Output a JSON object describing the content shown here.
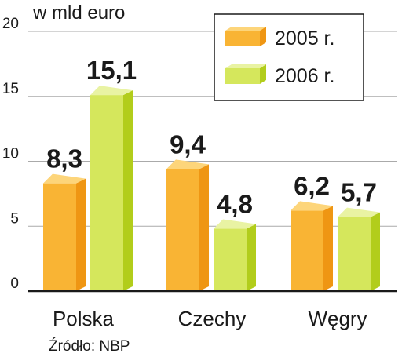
{
  "colors": {
    "2005": {
      "front": "#f9b434",
      "side": "#ef9613",
      "top": "#fdd57a"
    },
    "2006": {
      "front": "#d5e75c",
      "side": "#b2cd1b",
      "top": "#e9f3a3"
    }
  },
  "chart_data": {
    "type": "bar",
    "title": "",
    "unit_label": "w mld euro",
    "xlabel": "",
    "ylabel": "",
    "ylim": [
      0,
      20
    ],
    "yticks": [
      0,
      5,
      10,
      15,
      20
    ],
    "ytick_labels": [
      "0",
      "5",
      "10",
      "15",
      "20"
    ],
    "grid": true,
    "legend_position": "top-right",
    "categories": [
      "Polska",
      "Czechy",
      "Węgry"
    ],
    "series": [
      {
        "name": "2005 r.",
        "key": "2005",
        "values": [
          8.3,
          9.4,
          6.2
        ],
        "labels": [
          "8,3",
          "9,4",
          "6,2"
        ]
      },
      {
        "name": "2006 r.",
        "key": "2006",
        "values": [
          15.1,
          4.8,
          5.7
        ],
        "labels": [
          "15,1",
          "4,8",
          "5,7"
        ]
      }
    ],
    "source": "Źródło: NBP"
  }
}
